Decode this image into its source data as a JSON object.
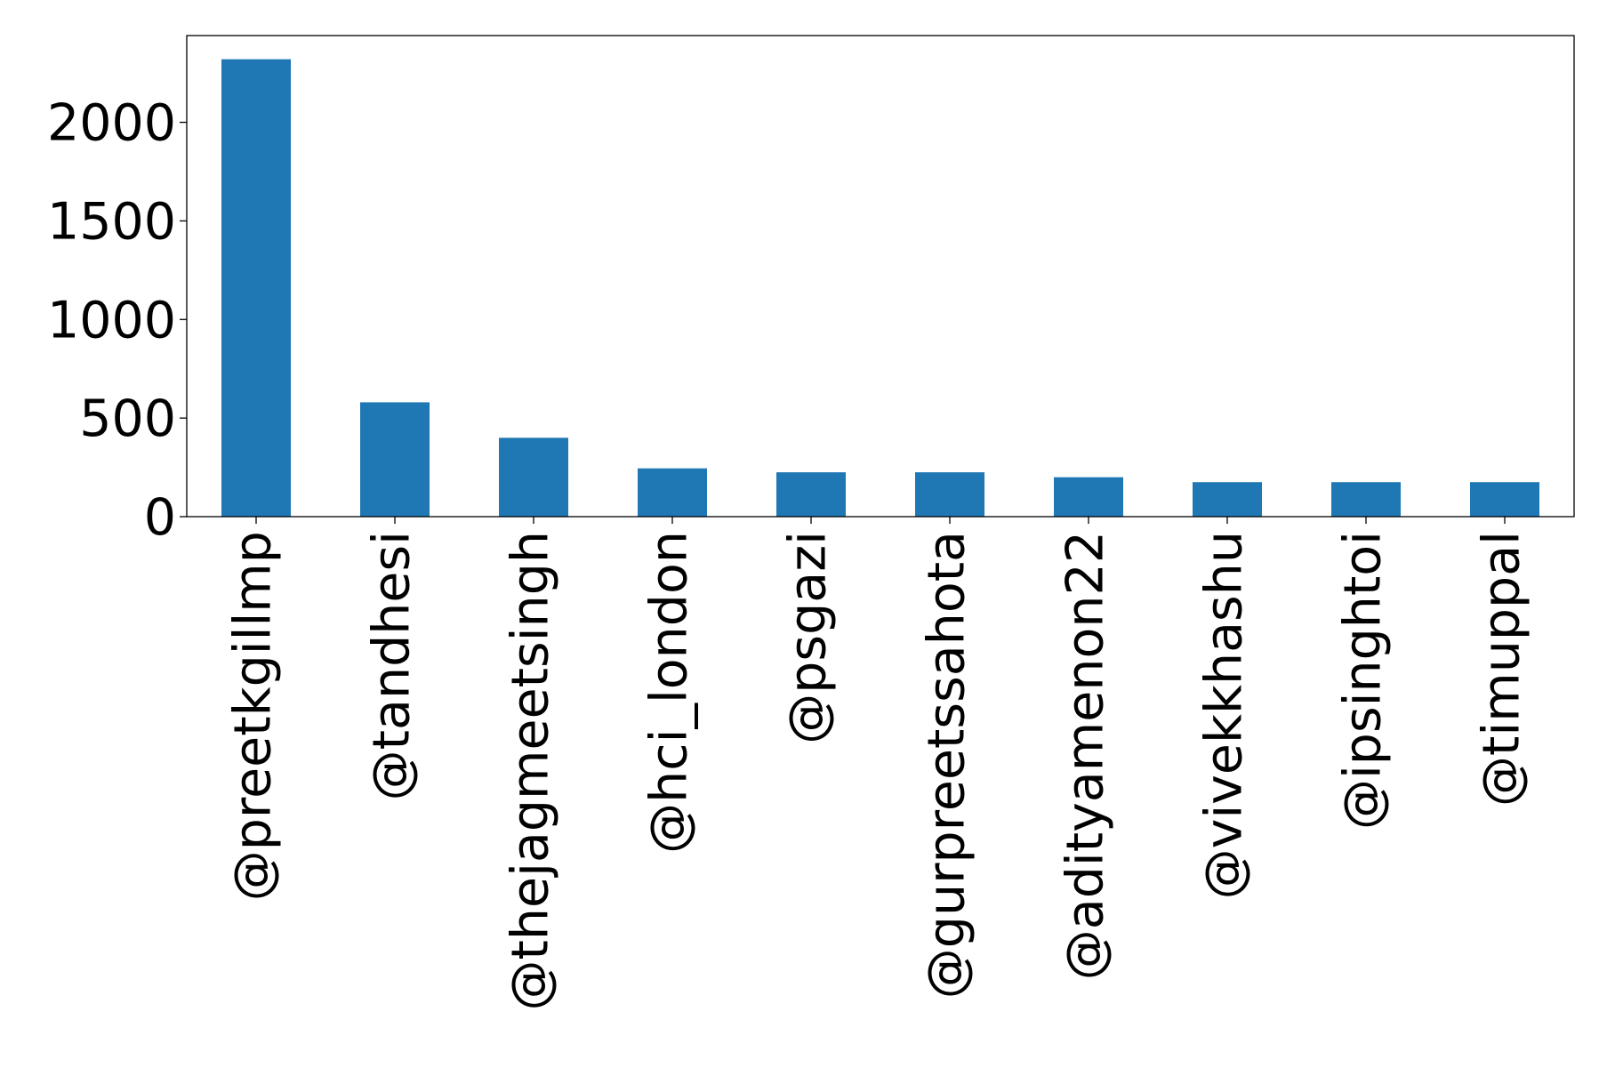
{
  "chart_data": {
    "type": "bar",
    "title": "",
    "xlabel": "",
    "ylabel": "",
    "categories": [
      "@preetkgillmp",
      "@tandhesi",
      "@thejagmeetsingh",
      "@hci_london",
      "@psgazi",
      "@gurpreetssahota",
      "@adityamenon22",
      "@vivekkhashu",
      "@ipsinghtoi",
      "@timuppal"
    ],
    "values": [
      2320,
      580,
      400,
      245,
      225,
      225,
      200,
      175,
      175,
      175
    ],
    "ylim": [
      0,
      2440
    ],
    "yticks": [
      0,
      500,
      1000,
      1500,
      2000
    ],
    "grid": false,
    "legend": "none",
    "bar_color": "#1f77b4"
  }
}
